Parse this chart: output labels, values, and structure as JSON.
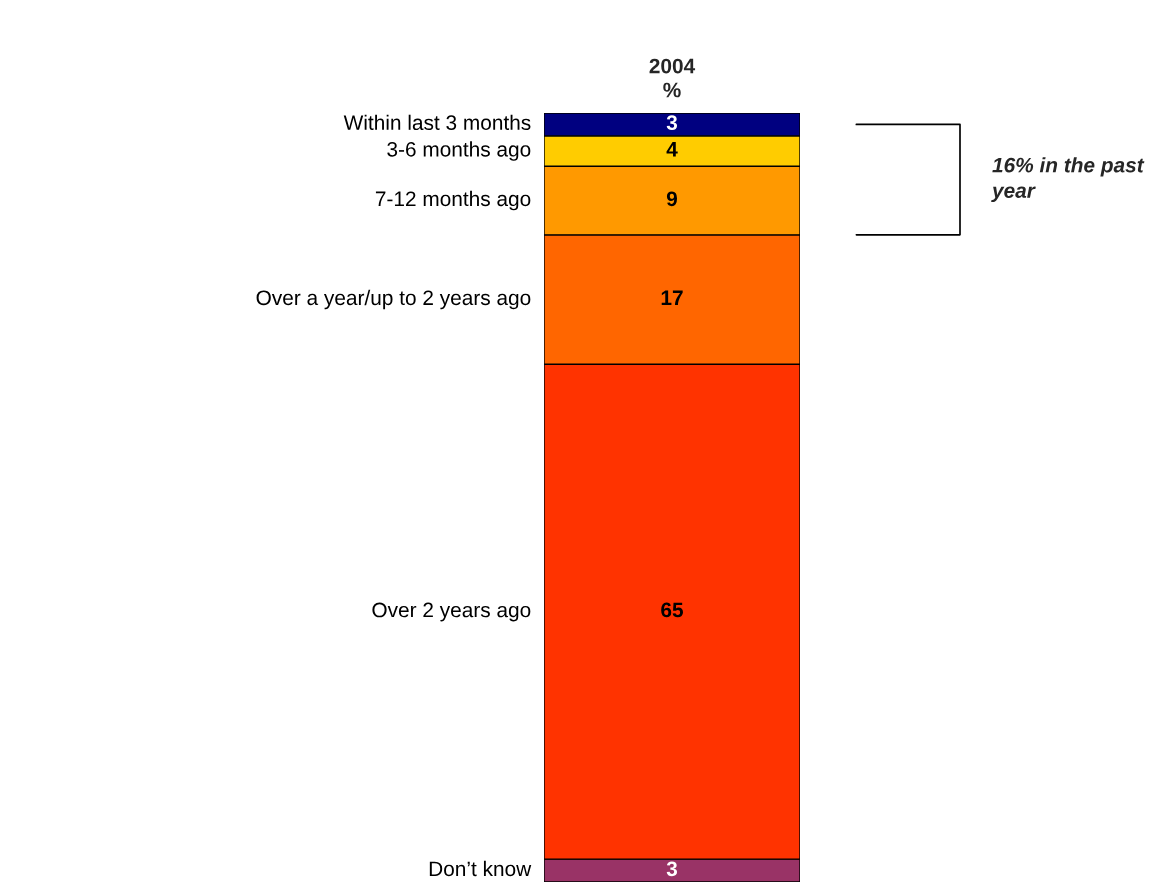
{
  "chart_data": {
    "type": "bar",
    "stacked": true,
    "data_labels": true,
    "legend": false,
    "title": "2004\n%",
    "categories": [
      null
    ],
    "series": [
      {
        "name": "Don’t know",
        "color": "#993366",
        "values": [
          3
        ]
      },
      {
        "name": "Over 2 years ago",
        "color": "#ff3300",
        "values": [
          65
        ]
      },
      {
        "name": "Over a year/up to 2 years ago",
        "color": "#ff6600",
        "values": [
          17
        ]
      },
      {
        "name": "7-12 months ago",
        "color": "#ff9900",
        "values": [
          9
        ]
      },
      {
        "name": "3-6 months ago",
        "color": "#ffcc00",
        "values": [
          4
        ]
      },
      {
        "name": "Within last 3 months",
        "color": "#000080",
        "values": [
          3
        ]
      }
    ],
    "annotations": [
      "16% in the past year"
    ]
  }
}
